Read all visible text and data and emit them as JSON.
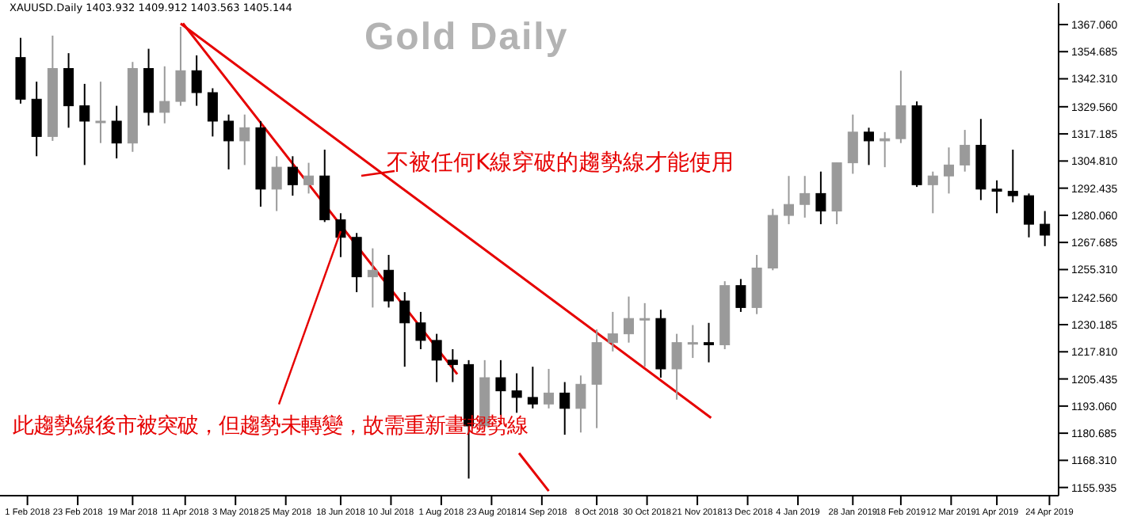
{
  "chart_data": {
    "type": "candlestick",
    "title": "Gold Daily",
    "annotations": [
      "XAUUSD.Daily 1403.932 1409.912 1403.563 1405.144",
      "不被任何K線穿破的趨勢線才能使用",
      {
        "text": "此趨勢線後市被突破，但趨勢未轉變，故需重新畫趨勢線",
        "x": "2018-06-18",
        "y": 1273
      }
    ],
    "x": [
      "2018-01-29",
      "2018-02-05",
      "2018-02-12",
      "2018-02-19",
      "2018-02-26",
      "2018-03-05",
      "2018-03-12",
      "2018-03-19",
      "2018-03-26",
      "2018-04-02",
      "2018-04-09",
      "2018-04-16",
      "2018-04-23",
      "2018-04-30",
      "2018-05-07",
      "2018-05-14",
      "2018-05-21",
      "2018-05-28",
      "2018-06-04",
      "2018-06-11",
      "2018-06-18",
      "2018-06-25",
      "2018-07-02",
      "2018-07-09",
      "2018-07-16",
      "2018-07-23",
      "2018-07-30",
      "2018-08-06",
      "2018-08-13",
      "2018-08-20",
      "2018-08-27",
      "2018-09-03",
      "2018-09-10",
      "2018-09-17",
      "2018-09-24",
      "2018-10-01",
      "2018-10-08",
      "2018-10-15",
      "2018-10-22",
      "2018-10-29",
      "2018-11-05",
      "2018-11-12",
      "2018-11-19",
      "2018-11-26",
      "2018-12-03",
      "2018-12-10",
      "2018-12-17",
      "2018-12-24",
      "2018-12-31",
      "2019-01-07",
      "2019-01-14",
      "2019-01-21",
      "2019-01-28",
      "2019-02-04",
      "2019-02-11",
      "2019-02-18",
      "2019-02-25",
      "2019-03-04",
      "2019-03-11",
      "2019-03-18",
      "2019-03-25",
      "2019-04-01",
      "2019-04-08",
      "2019-04-15",
      "2019-04-22"
    ],
    "ohlc": [
      [
        1352,
        1361,
        1331,
        1333
      ],
      [
        1333,
        1341,
        1307,
        1316
      ],
      [
        1316,
        1362,
        1314,
        1347
      ],
      [
        1347,
        1354,
        1320,
        1330
      ],
      [
        1330,
        1340,
        1303,
        1323
      ],
      [
        1323,
        1341,
        1313,
        1323
      ],
      [
        1323,
        1330,
        1306,
        1313
      ],
      [
        1313,
        1350,
        1309,
        1347
      ],
      [
        1347,
        1356,
        1321,
        1327
      ],
      [
        1327,
        1348,
        1322,
        1332
      ],
      [
        1332,
        1366,
        1330,
        1346
      ],
      [
        1346,
        1353,
        1330,
        1336
      ],
      [
        1336,
        1338,
        1316,
        1323
      ],
      [
        1323,
        1326,
        1301,
        1314
      ],
      [
        1314,
        1326,
        1303,
        1320
      ],
      [
        1320,
        1323,
        1284,
        1292
      ],
      [
        1292,
        1307,
        1282,
        1302
      ],
      [
        1302,
        1307,
        1289,
        1294
      ],
      [
        1294,
        1304,
        1290,
        1298
      ],
      [
        1298,
        1310,
        1277,
        1278
      ],
      [
        1278,
        1281,
        1261,
        1270
      ],
      [
        1270,
        1272,
        1245,
        1252
      ],
      [
        1252,
        1265,
        1238,
        1255
      ],
      [
        1255,
        1262,
        1238,
        1241
      ],
      [
        1241,
        1245,
        1211,
        1231
      ],
      [
        1231,
        1236,
        1219,
        1223
      ],
      [
        1223,
        1226,
        1204,
        1214
      ],
      [
        1214,
        1219,
        1204,
        1212
      ],
      [
        1212,
        1214,
        1160,
        1184
      ],
      [
        1184,
        1214,
        1183,
        1206
      ],
      [
        1206,
        1214,
        1189,
        1200
      ],
      [
        1200,
        1208,
        1190,
        1197
      ],
      [
        1197,
        1211,
        1192,
        1194
      ],
      [
        1194,
        1210,
        1192,
        1199
      ],
      [
        1199,
        1204,
        1180,
        1192
      ],
      [
        1192,
        1207,
        1181,
        1203
      ],
      [
        1203,
        1228,
        1183,
        1222
      ],
      [
        1222,
        1236,
        1218,
        1226
      ],
      [
        1226,
        1243,
        1222,
        1233
      ],
      [
        1233,
        1240,
        1211,
        1233
      ],
      [
        1233,
        1237,
        1206,
        1210
      ],
      [
        1210,
        1226,
        1196,
        1222
      ],
      [
        1222,
        1230,
        1215,
        1222
      ],
      [
        1222,
        1231,
        1213,
        1221
      ],
      [
        1221,
        1250,
        1219,
        1248
      ],
      [
        1248,
        1251,
        1236,
        1238
      ],
      [
        1238,
        1262,
        1235,
        1256
      ],
      [
        1256,
        1283,
        1255,
        1280
      ],
      [
        1280,
        1298,
        1276,
        1285
      ],
      [
        1285,
        1298,
        1279,
        1290
      ],
      [
        1290,
        1300,
        1276,
        1282
      ],
      [
        1282,
        1304,
        1276,
        1304
      ],
      [
        1304,
        1326,
        1299,
        1318
      ],
      [
        1318,
        1320,
        1303,
        1314
      ],
      [
        1314,
        1318,
        1302,
        1315
      ],
      [
        1315,
        1346,
        1313,
        1330
      ],
      [
        1330,
        1332,
        1293,
        1294
      ],
      [
        1294,
        1300,
        1281,
        1298
      ],
      [
        1298,
        1311,
        1290,
        1303
      ],
      [
        1303,
        1319,
        1300,
        1312
      ],
      [
        1312,
        1324,
        1287,
        1292
      ],
      [
        1292,
        1296,
        1281,
        1291
      ],
      [
        1291,
        1310,
        1286,
        1289
      ],
      [
        1289,
        1290,
        1270,
        1276
      ],
      [
        1276,
        1282,
        1266,
        1271
      ]
    ],
    "colors": [
      "#000000",
      "#000000",
      "#9a9a9a",
      "#000000",
      "#000000",
      "#9a9a9a",
      "#000000",
      "#9a9a9a",
      "#000000",
      "#9a9a9a",
      "#9a9a9a",
      "#000000",
      "#000000",
      "#000000",
      "#9a9a9a",
      "#000000",
      "#9a9a9a",
      "#000000",
      "#9a9a9a",
      "#000000",
      "#000000",
      "#000000",
      "#9a9a9a",
      "#000000",
      "#000000",
      "#000000",
      "#000000",
      "#000000",
      "#000000",
      "#9a9a9a",
      "#000000",
      "#000000",
      "#000000",
      "#9a9a9a",
      "#000000",
      "#9a9a9a",
      "#9a9a9a",
      "#9a9a9a",
      "#9a9a9a",
      "#9a9a9a",
      "#000000",
      "#9a9a9a",
      "#9a9a9a",
      "#000000",
      "#9a9a9a",
      "#000000",
      "#9a9a9a",
      "#9a9a9a",
      "#9a9a9a",
      "#9a9a9a",
      "#000000",
      "#9a9a9a",
      "#9a9a9a",
      "#000000",
      "#9a9a9a",
      "#9a9a9a",
      "#000000",
      "#9a9a9a",
      "#9a9a9a",
      "#9a9a9a",
      "#000000",
      "#000000",
      "#000000",
      "#000000",
      "#000000"
    ],
    "series": [
      {
        "type": "line",
        "color": "#e60000",
        "x": [
          "2018-04-09",
          "2018-11-27"
        ],
        "values": [
          1367.5,
          1187.7
        ]
      },
      {
        "type": "line",
        "color": "#e60000",
        "x": [
          "2018-04-10",
          "2018-08-08",
          "2018-08-20",
          "2018-09-04",
          "2018-09-17"
        ],
        "values": [
          1367.6,
          1207.6,
          null,
          1171.6,
          1154.3
        ]
      }
    ],
    "xlim": [
      "2018-01-20",
      "2019-04-28"
    ],
    "xticks": [
      {
        "value": "2018-02-01",
        "label": "1 Feb 2018"
      },
      {
        "value": "2018-02-23",
        "label": "23 Feb 2018"
      },
      {
        "value": "2018-03-19",
        "label": "19 Mar 2018"
      },
      {
        "value": "2018-04-11",
        "label": "11 Apr 2018"
      },
      {
        "value": "2018-05-03",
        "label": "3 May 2018"
      },
      {
        "value": "2018-05-25",
        "label": "25 May 2018"
      },
      {
        "value": "2018-06-18",
        "label": "18 Jun 2018"
      },
      {
        "value": "2018-07-10",
        "label": "10 Jul 2018"
      },
      {
        "value": "2018-08-01",
        "label": "1 Aug 2018"
      },
      {
        "value": "2018-08-23",
        "label": "23 Aug 2018"
      },
      {
        "value": "2018-09-14",
        "label": "14 Sep 2018"
      },
      {
        "value": "2018-10-08",
        "label": "8 Oct 2018"
      },
      {
        "value": "2018-10-30",
        "label": "30 Oct 2018"
      },
      {
        "value": "2018-11-21",
        "label": "21 Nov 2018"
      },
      {
        "value": "2018-12-13",
        "label": "13 Dec 2018"
      },
      {
        "value": "2019-01-04",
        "label": "4 Jan 2019"
      },
      {
        "value": "2019-01-28",
        "label": "28 Jan 2019"
      },
      {
        "value": "2019-02-18",
        "label": "18 Feb 2019"
      },
      {
        "value": "2019-03-12",
        "label": "12 Mar 2019"
      },
      {
        "value": "2019-04-01",
        "label": "1 Apr 2019"
      },
      {
        "value": "2019-04-24",
        "label": "24 Apr 2019"
      }
    ],
    "ylim": [
      1152.2,
      1376.8
    ],
    "yticks": [
      {
        "value": 1367.06,
        "label": "1367.060"
      },
      {
        "value": 1354.685,
        "label": "1354.685"
      },
      {
        "value": 1342.31,
        "label": "1342.310"
      },
      {
        "value": 1329.56,
        "label": "1329.560"
      },
      {
        "value": 1317.185,
        "label": "1317.185"
      },
      {
        "value": 1304.81,
        "label": "1304.810"
      },
      {
        "value": 1292.435,
        "label": "1292.435"
      },
      {
        "value": 1280.06,
        "label": "1280.060"
      },
      {
        "value": 1267.685,
        "label": "1267.685"
      },
      {
        "value": 1255.31,
        "label": "1255.310"
      },
      {
        "value": 1242.56,
        "label": "1242.560"
      },
      {
        "value": 1230.185,
        "label": "1230.185"
      },
      {
        "value": 1217.81,
        "label": "1217.810"
      },
      {
        "value": 1205.435,
        "label": "1205.435"
      },
      {
        "value": 1193.06,
        "label": "1193.060"
      },
      {
        "value": 1180.685,
        "label": "1180.685"
      },
      {
        "value": 1168.31,
        "label": "1168.310"
      },
      {
        "value": 1155.935,
        "label": "1155.935"
      }
    ]
  }
}
